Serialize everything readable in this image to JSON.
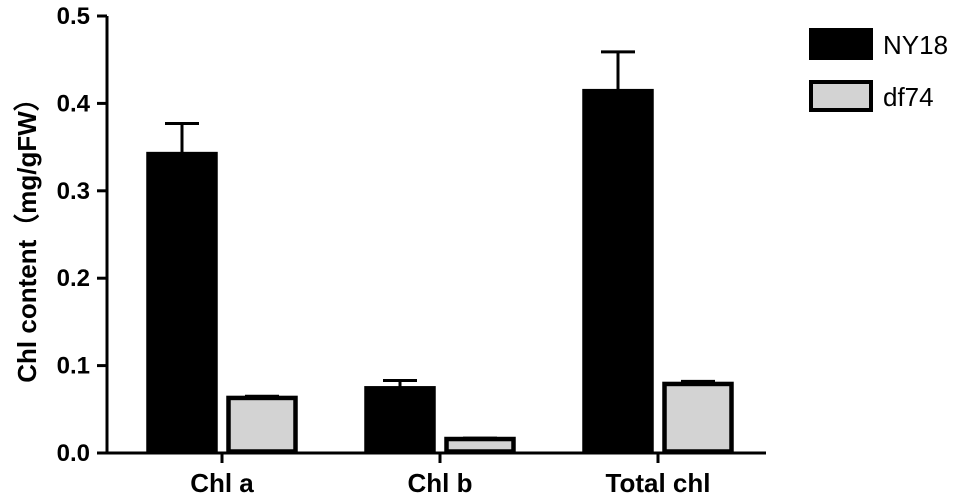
{
  "chart_data": {
    "type": "bar",
    "title": "",
    "xlabel": "",
    "ylabel": "Chl content（mg/gFW）",
    "ylim": [
      0,
      0.5
    ],
    "yticks": [
      "0.0",
      "0.1",
      "0.2",
      "0.3",
      "0.4",
      "0.5"
    ],
    "categories": [
      "Chl a",
      "Chl b",
      "Total chl"
    ],
    "series": [
      {
        "name": "NY18",
        "color": "#000000",
        "values": [
          0.342,
          0.074,
          0.414
        ],
        "errors": [
          0.035,
          0.009,
          0.045
        ]
      },
      {
        "name": "df74",
        "color": "#d3d3d3",
        "values": [
          0.063,
          0.016,
          0.079
        ],
        "errors": [
          0.002,
          0.001,
          0.003
        ]
      }
    ],
    "legend_position": "top-right",
    "grid": false
  }
}
